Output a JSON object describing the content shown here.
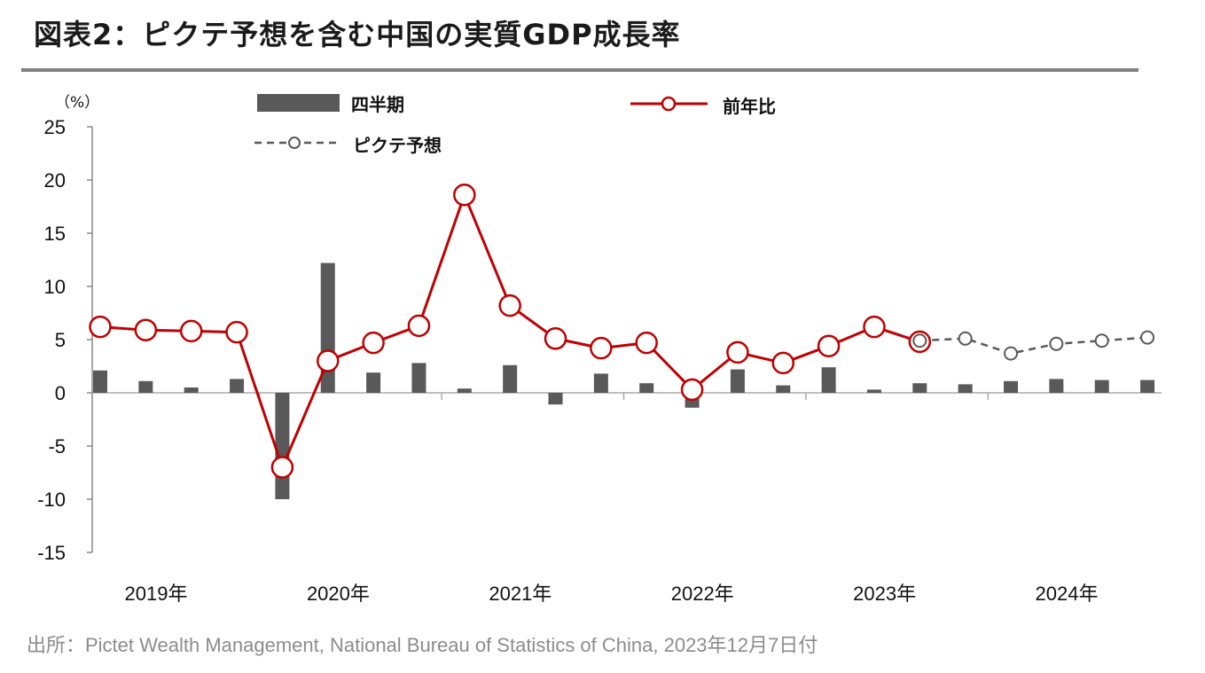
{
  "title": "図表2：ピクテ予想を含む中国の実質GDP成長率",
  "source": "出所：Pictet Wealth Management, National Bureau of Statistics of China, 2023年12月7日付",
  "colors": {
    "bar": "#595959",
    "actual_line": "#c00000",
    "forecast_line": "#595959",
    "marker_fill": "#ffffff"
  },
  "chart_data": {
    "type": "bar+line",
    "unit": "（%）",
    "ylim": [
      -15,
      25
    ],
    "yticks": [
      25,
      20,
      15,
      10,
      5,
      0,
      -5,
      -10,
      -15
    ],
    "year_labels": [
      "2019年",
      "2020年",
      "2021年",
      "2022年",
      "2023年",
      "2024年"
    ],
    "quarters": [
      "2019Q1",
      "2019Q2",
      "2019Q3",
      "2019Q4",
      "2020Q1",
      "2020Q2",
      "2020Q3",
      "2020Q4",
      "2021Q1",
      "2021Q2",
      "2021Q3",
      "2021Q4",
      "2022Q1",
      "2022Q2",
      "2022Q3",
      "2022Q4",
      "2023Q1",
      "2023Q2",
      "2023Q3",
      "2023Q4",
      "2024Q1",
      "2024Q2",
      "2024Q3",
      "2024Q4"
    ],
    "legend": {
      "bar": "四半期",
      "actual": "前年比",
      "forecast": "ピクテ予想"
    },
    "series": [
      {
        "name": "四半期",
        "kind": "bar",
        "values": [
          2.1,
          1.1,
          0.5,
          1.3,
          -10.0,
          12.2,
          1.9,
          2.8,
          0.4,
          2.6,
          -1.1,
          1.8,
          0.9,
          -1.4,
          2.2,
          0.7,
          2.4,
          0.3,
          0.9,
          0.8,
          1.1,
          1.3,
          1.2,
          1.2
        ]
      },
      {
        "name": "前年比",
        "kind": "line",
        "values": [
          6.2,
          5.9,
          5.8,
          5.7,
          -7.0,
          3.0,
          4.7,
          6.3,
          18.6,
          8.2,
          5.1,
          4.2,
          4.7,
          0.3,
          3.8,
          2.8,
          4.4,
          6.2,
          4.8,
          null,
          null,
          null,
          null,
          null
        ]
      },
      {
        "name": "ピクテ予想",
        "kind": "dashed-line",
        "values": [
          null,
          null,
          null,
          null,
          null,
          null,
          null,
          null,
          null,
          null,
          null,
          null,
          null,
          null,
          null,
          null,
          null,
          null,
          4.9,
          5.1,
          3.7,
          4.6,
          4.9,
          5.2
        ]
      }
    ]
  }
}
